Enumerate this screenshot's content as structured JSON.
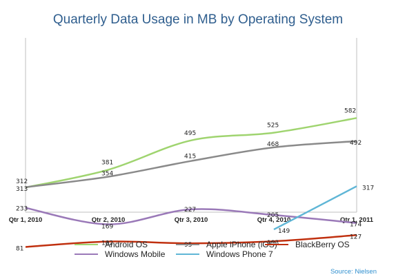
{
  "chart_data": {
    "type": "line",
    "title": "Quarterly Data Usage in MB by Operating System",
    "categories": [
      "Qtr 1, 2010",
      "Qtr 2, 2010",
      "Qtr 3, 2010",
      "Qtr 4, 2010",
      "Qtr 1, 2011"
    ],
    "ylim": [
      0,
      700
    ],
    "grid": false,
    "legend_position": "bottom",
    "series": [
      {
        "name": "Android OS",
        "color": "#9fd46f",
        "values": [
          312,
          381,
          495,
          525,
          582
        ]
      },
      {
        "name": "Apple iPhone (iOS)",
        "color": "#8a8a8a",
        "values": [
          313,
          354,
          415,
          468,
          492
        ]
      },
      {
        "name": "BlackBerry OS",
        "color": "#c0300f",
        "values": [
          81,
          102,
          95,
          103,
          127
        ]
      },
      {
        "name": "Windows Mobile",
        "color": "#9a79b8",
        "values": [
          233,
          169,
          227,
          205,
          174
        ]
      },
      {
        "name": "Windows Phone 7",
        "color": "#5fb6d6",
        "values": [
          null,
          null,
          null,
          149,
          317
        ]
      }
    ],
    "source": "Source: Nielsen"
  }
}
